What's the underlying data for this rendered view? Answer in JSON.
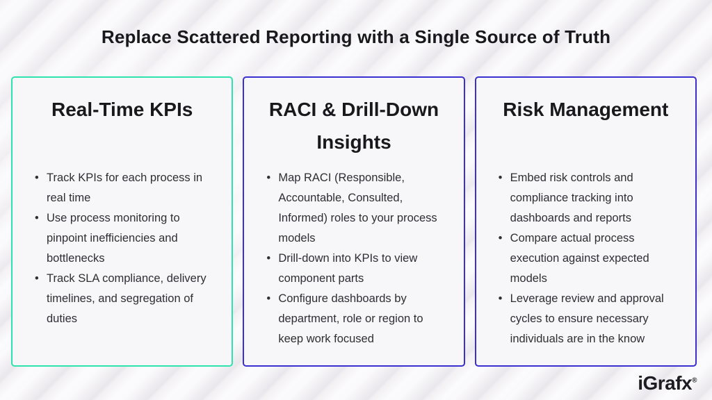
{
  "title": "Replace Scattered Reporting with a Single Source of Truth",
  "cards": [
    {
      "heading": "Real-Time KPIs",
      "accent_color": "#2fe3ae",
      "bullets": [
        "Track KPIs for each process in real time",
        "Use process monitoring to pinpoint inefficiencies and bottlenecks",
        "Track SLA compliance, delivery timelines, and segregation of duties"
      ]
    },
    {
      "heading": "RACI & Drill-Down Insights",
      "accent_color": "#3a2fd1",
      "bullets": [
        "Map RACI (Responsible, Accountable, Consulted, Informed) roles to your process models",
        "Drill-down into KPIs to view component parts",
        "Configure dashboards by department, role or region to keep work focused"
      ]
    },
    {
      "heading": "Risk Management",
      "accent_color": "#3a2fd1",
      "bullets": [
        "Embed risk controls and compliance tracking into dashboards and reports",
        "Compare actual process execution against expected models",
        "Leverage review and approval cycles to ensure necessary individuals are in the know"
      ]
    }
  ],
  "footer": {
    "logo_text": "iGrafx",
    "registered_mark": "®"
  },
  "colors": {
    "background": "#f5f4f6",
    "stripe": "#e9e7ec",
    "card_background": "#f7f6f8",
    "teal_accent": "#2fe3ae",
    "indigo_accent": "#3a2fd1",
    "heading_text": "#18181d",
    "body_text": "#2e2e35"
  }
}
